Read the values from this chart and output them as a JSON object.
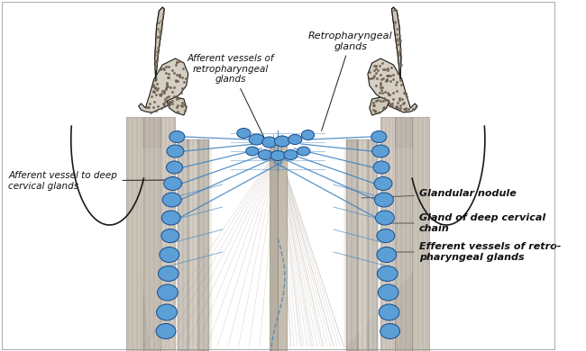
{
  "bg_color": "#ffffff",
  "line_color": "#1a1a1a",
  "blue_node_color": "#5b9fd6",
  "blue_node_edge": "#1a4a88",
  "blue_vessel_color": "#3a80c0",
  "bone_fill": "#d8d0c0",
  "bone_texture": "#8a7a68",
  "muscle_light": "#c8c0b0",
  "muscle_mid": "#b0a898",
  "muscle_dark": "#989080",
  "annotation_color": "#111111",
  "labels": {
    "retropharyngeal_glands": "Retropharyngeal\nglands",
    "afferent_vessels_retro": "Afferent vessels of\nretropharyngeal\nglands",
    "afferent_vessel_deep": "Afferent vessel to deep\ncervical glands",
    "glandular_nodule": "Glandular nodule",
    "gland_deep_cervical": "Gland of deep cervical\nchain",
    "efferent_vessels": "Efferent vessels of retro-\npharyngeal glands"
  },
  "figsize": [
    6.5,
    3.9
  ],
  "dpi": 100
}
